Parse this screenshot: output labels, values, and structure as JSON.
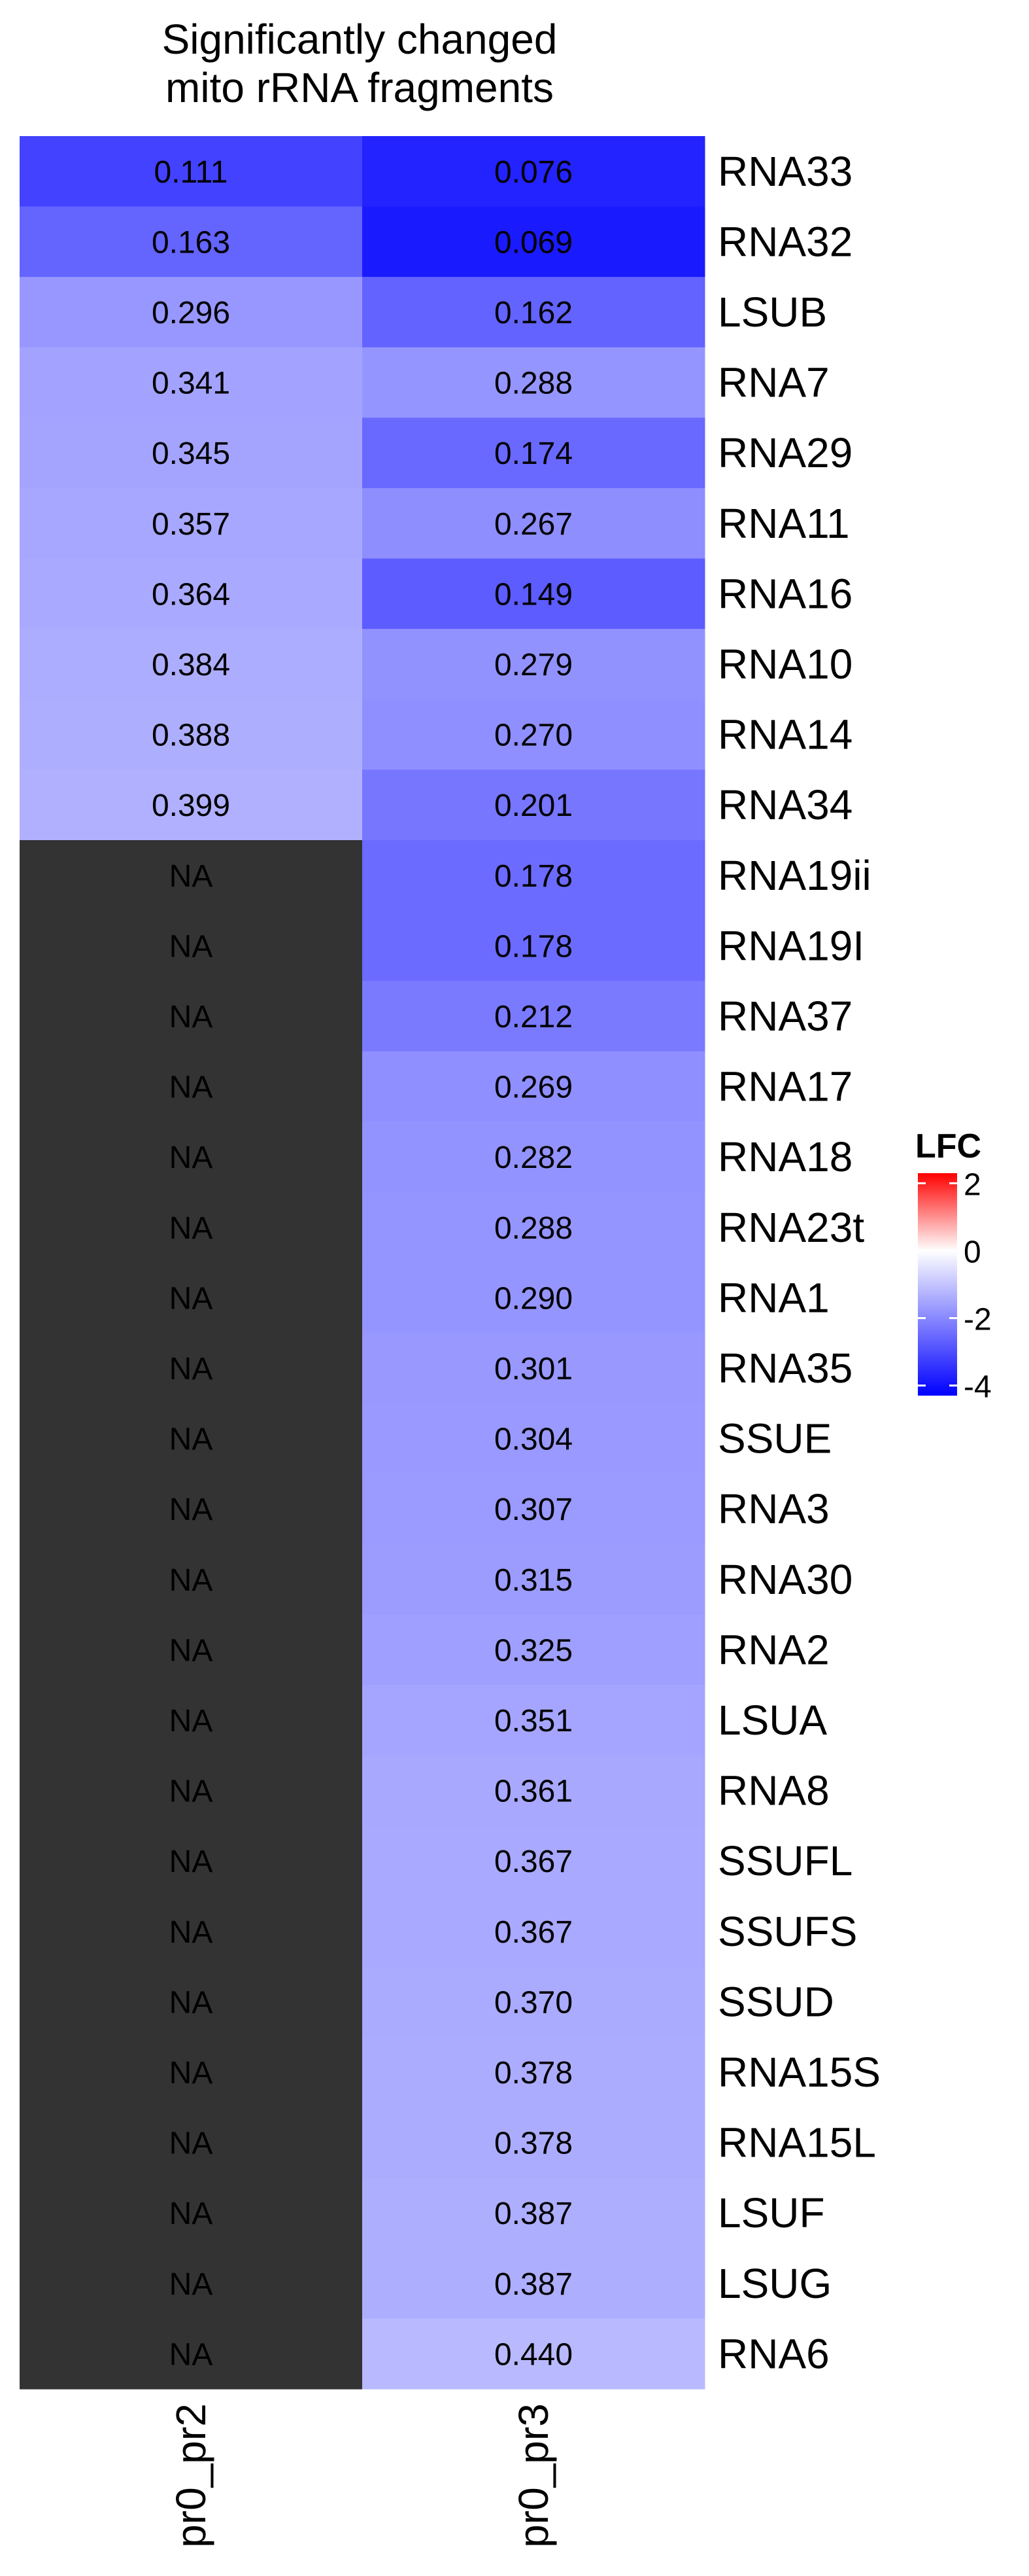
{
  "chart_data": {
    "type": "heatmap",
    "title": "Significantly changed\nmito rRNA fragments",
    "title_lines": [
      "Significantly changed",
      "mito rRNA fragments"
    ],
    "columns": [
      "pr0_pr2",
      "pr0_pr3"
    ],
    "rows": [
      "RNA33",
      "RNA32",
      "LSUB",
      "RNA7",
      "RNA29",
      "RNA11",
      "RNA16",
      "RNA10",
      "RNA14",
      "RNA34",
      "RNA19ii",
      "RNA19I",
      "RNA37",
      "RNA17",
      "RNA18",
      "RNA23t",
      "RNA1",
      "RNA35",
      "SSUE",
      "RNA3",
      "RNA30",
      "RNA2",
      "LSUA",
      "RNA8",
      "SSUFL",
      "SSUFS",
      "SSUD",
      "RNA15S",
      "RNA15L",
      "LSUF",
      "LSUG",
      "RNA6"
    ],
    "cell_labels": [
      [
        "0.111",
        "0.076"
      ],
      [
        "0.163",
        "0.069"
      ],
      [
        "0.296",
        "0.162"
      ],
      [
        "0.341",
        "0.288"
      ],
      [
        "0.345",
        "0.174"
      ],
      [
        "0.357",
        "0.267"
      ],
      [
        "0.364",
        "0.149"
      ],
      [
        "0.384",
        "0.279"
      ],
      [
        "0.388",
        "0.270"
      ],
      [
        "0.399",
        "0.201"
      ],
      [
        "NA",
        "0.178"
      ],
      [
        "NA",
        "0.178"
      ],
      [
        "NA",
        "0.212"
      ],
      [
        "NA",
        "0.269"
      ],
      [
        "NA",
        "0.282"
      ],
      [
        "NA",
        "0.288"
      ],
      [
        "NA",
        "0.290"
      ],
      [
        "NA",
        "0.301"
      ],
      [
        "NA",
        "0.304"
      ],
      [
        "NA",
        "0.307"
      ],
      [
        "NA",
        "0.315"
      ],
      [
        "NA",
        "0.325"
      ],
      [
        "NA",
        "0.351"
      ],
      [
        "NA",
        "0.361"
      ],
      [
        "NA",
        "0.367"
      ],
      [
        "NA",
        "0.367"
      ],
      [
        "NA",
        "0.370"
      ],
      [
        "NA",
        "0.378"
      ],
      [
        "NA",
        "0.378"
      ],
      [
        "NA",
        "0.387"
      ],
      [
        "NA",
        "0.387"
      ],
      [
        "NA",
        "0.440"
      ]
    ],
    "cell_values": [
      [
        0.111,
        0.076
      ],
      [
        0.163,
        0.069
      ],
      [
        0.296,
        0.162
      ],
      [
        0.341,
        0.288
      ],
      [
        0.345,
        0.174
      ],
      [
        0.357,
        0.267
      ],
      [
        0.364,
        0.149
      ],
      [
        0.384,
        0.279
      ],
      [
        0.388,
        0.27
      ],
      [
        0.399,
        0.201
      ],
      [
        null,
        0.178
      ],
      [
        null,
        0.178
      ],
      [
        null,
        0.212
      ],
      [
        null,
        0.269
      ],
      [
        null,
        0.282
      ],
      [
        null,
        0.288
      ],
      [
        null,
        0.29
      ],
      [
        null,
        0.301
      ],
      [
        null,
        0.304
      ],
      [
        null,
        0.307
      ],
      [
        null,
        0.315
      ],
      [
        null,
        0.325
      ],
      [
        null,
        0.351
      ],
      [
        null,
        0.361
      ],
      [
        null,
        0.367
      ],
      [
        null,
        0.367
      ],
      [
        null,
        0.37
      ],
      [
        null,
        0.378
      ],
      [
        null,
        0.378
      ],
      [
        null,
        0.387
      ],
      [
        null,
        0.387
      ],
      [
        null,
        0.44
      ]
    ],
    "color_scale": {
      "legend_title": "LFC",
      "ticks": [
        "2",
        "0",
        "-2",
        "-4"
      ],
      "tick_values": [
        2,
        0,
        -2,
        -4
      ],
      "range": [
        -4.3,
        2.3
      ],
      "low_color": "#0000ff",
      "mid_color": "#ffffff",
      "high_color": "#ff0000",
      "na_color": "#333333"
    }
  }
}
